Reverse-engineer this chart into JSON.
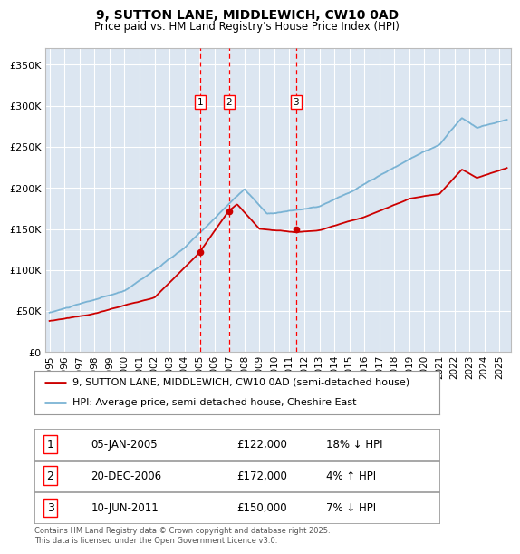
{
  "title": "9, SUTTON LANE, MIDDLEWICH, CW10 0AD",
  "subtitle": "Price paid vs. HM Land Registry's House Price Index (HPI)",
  "ylabel_ticks": [
    "£0",
    "£50K",
    "£100K",
    "£150K",
    "£200K",
    "£250K",
    "£300K",
    "£350K"
  ],
  "ytick_values": [
    0,
    50000,
    100000,
    150000,
    200000,
    250000,
    300000,
    350000
  ],
  "ylim": [
    0,
    370000
  ],
  "plot_bg_color": "#dce6f1",
  "red_line_color": "#cc0000",
  "blue_line_color": "#7ab3d4",
  "grid_color": "#ffffff",
  "legend_label_red": "9, SUTTON LANE, MIDDLEWICH, CW10 0AD (semi-detached house)",
  "legend_label_blue": "HPI: Average price, semi-detached house, Cheshire East",
  "sale_points": [
    {
      "label": "1",
      "date_num": 2005.03,
      "price": 122000,
      "info": "05-JAN-2005",
      "amount": "£122,000",
      "hpi": "18% ↓ HPI"
    },
    {
      "label": "2",
      "date_num": 2006.97,
      "price": 172000,
      "info": "20-DEC-2006",
      "amount": "£172,000",
      "hpi": "4% ↑ HPI"
    },
    {
      "label": "3",
      "date_num": 2011.44,
      "price": 150000,
      "info": "10-JUN-2011",
      "amount": "£150,000",
      "hpi": "7% ↓ HPI"
    }
  ],
  "footnote": "Contains HM Land Registry data © Crown copyright and database right 2025.\nThis data is licensed under the Open Government Licence v3.0.",
  "xlim_start": 1994.7,
  "xlim_end": 2025.8
}
